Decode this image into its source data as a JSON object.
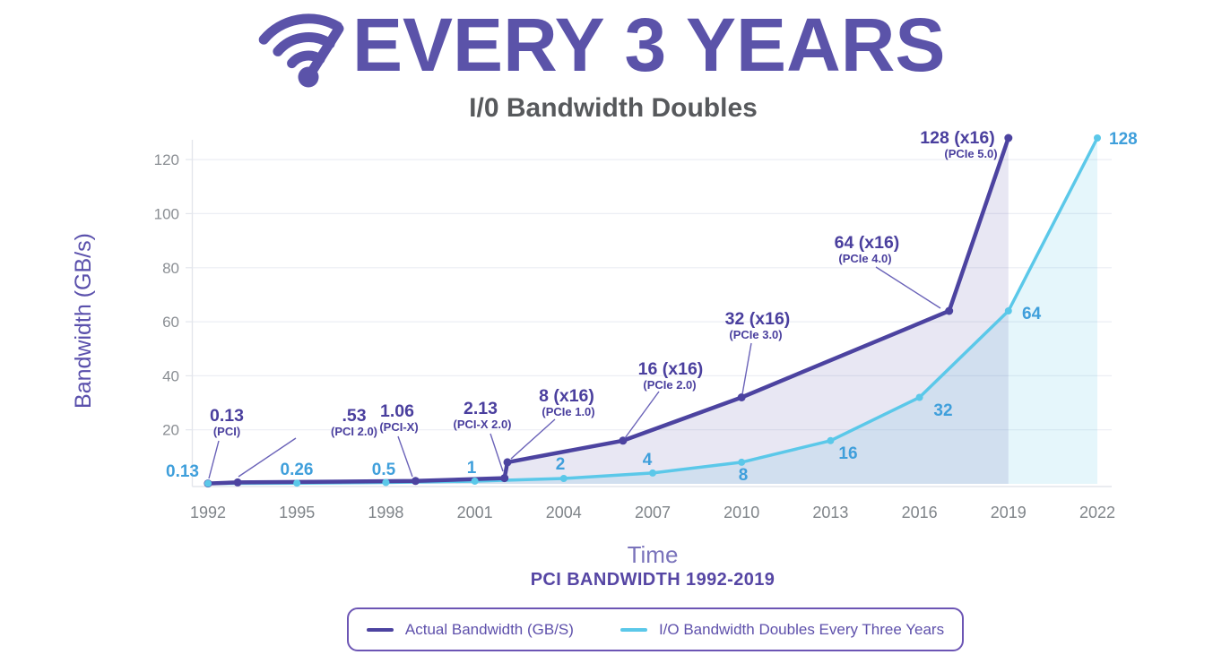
{
  "header": {
    "title": "EVERY 3 YEARS",
    "subtitle": "I/0 Bandwidth Doubles",
    "icon": "wifi-speedometer-icon"
  },
  "chart_data": {
    "type": "line",
    "title": "EVERY 3 YEARS",
    "subtitle": "I/0 Bandwidth Doubles",
    "xlabel": "Time",
    "ylabel": "Bandwidth (GB/s)",
    "caption": "PCI BANDWIDTH 1992-2019",
    "x_ticks": [
      1992,
      1995,
      1998,
      2001,
      2004,
      2007,
      2010,
      2013,
      2016,
      2019,
      2022
    ],
    "y_ticks": [
      20,
      40,
      60,
      80,
      100,
      120
    ],
    "xlim": [
      1992,
      2022
    ],
    "ylim": [
      0,
      130
    ],
    "grid": true,
    "legend_position": "bottom",
    "series": [
      {
        "name": "Actual Bandwidth (GB/S)",
        "color": "#4C43A0",
        "fill": "rgba(76,67,160,0.13)",
        "x": [
          1992,
          1993,
          1999,
          2002,
          2002.1,
          2006,
          2010,
          2017,
          2019
        ],
        "values": [
          0.13,
          0.53,
          1.06,
          2.13,
          8,
          16,
          32,
          64,
          128
        ],
        "point_labels": [
          "0.13",
          ".53",
          "1.06",
          "2.13",
          "8 (x16)",
          "16 (x16)",
          "32 (x16)",
          "64 (x16)",
          "128 (x16)"
        ],
        "point_sublabels": [
          "(PCI)",
          "(PCI 2.0)",
          "(PCI-X)",
          "(PCI-X 2.0)",
          "(PCIe 1.0)",
          "(PCIe 2.0)",
          "(PCIe 3.0)",
          "(PCIe 4.0)",
          "(PCIe 5.0)"
        ]
      },
      {
        "name": "I/O Bandwidth Doubles Every Three Years",
        "color": "#5BC8E9",
        "fill": "rgba(91,200,233,0.16)",
        "x": [
          1992,
          1995,
          1998,
          2001,
          2004,
          2007,
          2010,
          2013,
          2016,
          2019,
          2022
        ],
        "values": [
          0.13,
          0.26,
          0.5,
          1,
          2,
          4,
          8,
          16,
          32,
          64,
          128
        ],
        "point_labels": [
          "0.13",
          "0.26",
          "0.5",
          "1",
          "2",
          "4",
          "8",
          "16",
          "32",
          "64",
          "128"
        ]
      }
    ]
  },
  "colors": {
    "accent_purple": "#5B53A9",
    "line_purple": "#4C43A0",
    "line_cyan": "#5BC8E9",
    "label_blue": "#3F9FDB",
    "label_purple": "#4A3F9E",
    "subtitle_gray": "#57595C",
    "tick_gray": "#8A8E93",
    "grid": "#ECEEF4",
    "axis": "#E3E6EC",
    "leader": "#6A62B8",
    "caption_purple": "#5646A4",
    "time_purple": "#7A73BB",
    "legend_border": "#6C55B4",
    "legend_text": "#5E50AB",
    "actual_fill": "rgba(76,67,160,0.13)",
    "doubling_fill": "rgba(91,200,233,0.16)"
  }
}
